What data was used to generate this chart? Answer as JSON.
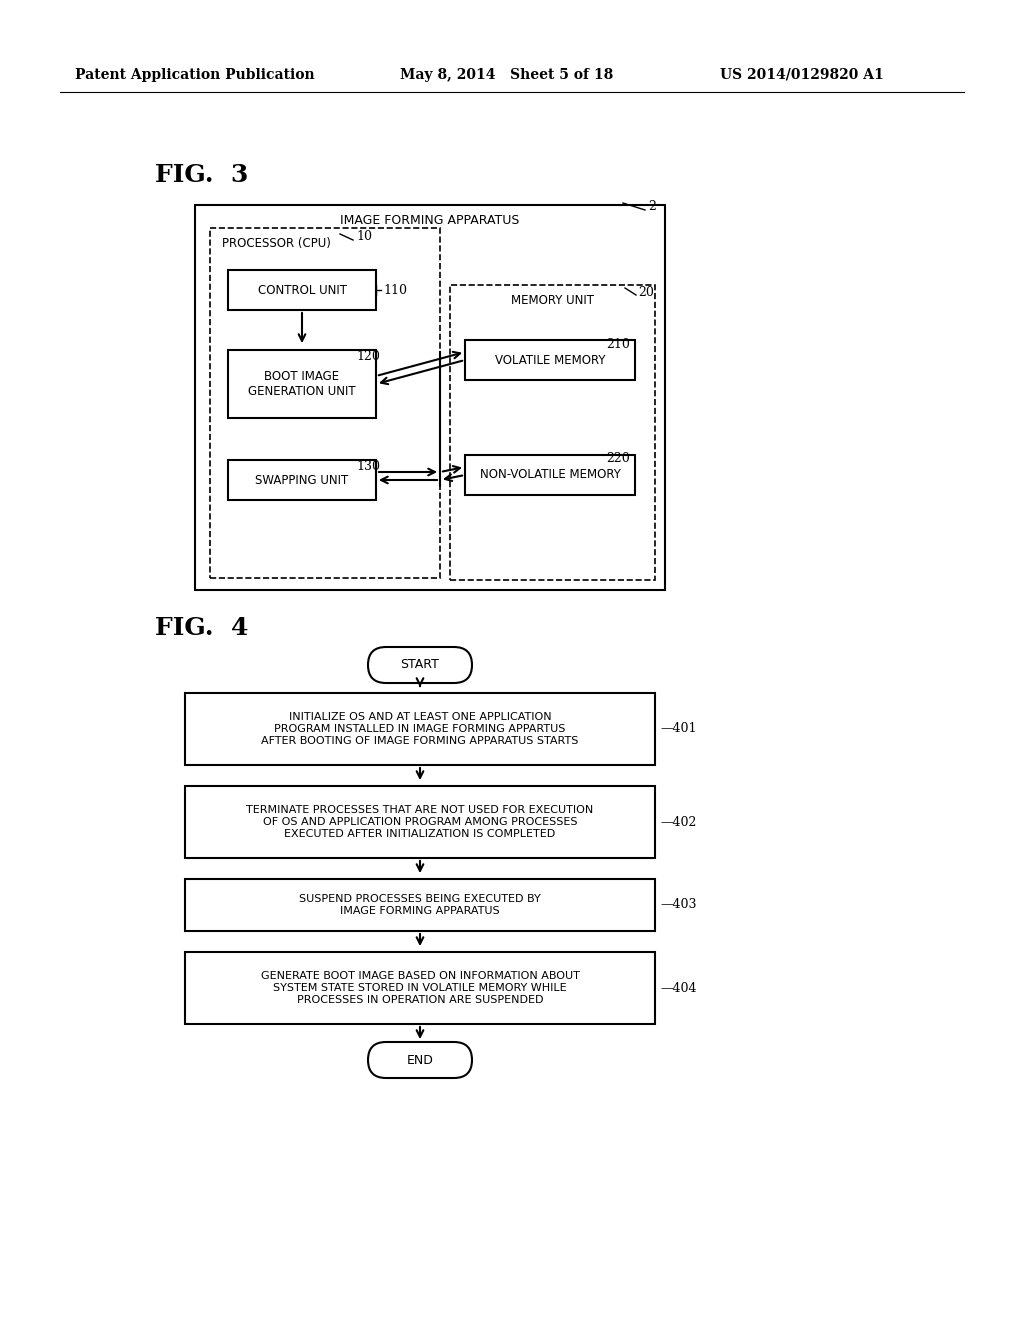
{
  "bg_color": "#ffffff",
  "header_left": "Patent Application Publication",
  "header_mid": "May 8, 2014   Sheet 5 of 18",
  "header_right": "US 2014/0129820 A1",
  "fig3_label": "FIG.  3",
  "fig4_label": "FIG.  4",
  "fig3": {
    "outer_box_label": "IMAGE FORMING APPARATUS",
    "outer_ref": "2",
    "processor_box_label": "PROCESSOR (CPU)",
    "processor_ref": "10",
    "control_unit_label": "CONTROL UNIT",
    "control_ref": "110",
    "boot_image_label": "BOOT IMAGE\nGENERATION UNIT",
    "boot_ref": "120",
    "swapping_label": "SWAPPING UNIT",
    "swapping_ref": "130",
    "memory_box_label": "MEMORY UNIT",
    "memory_ref": "20",
    "volatile_label": "VOLATILE MEMORY",
    "volatile_ref": "210",
    "nonvolatile_label": "NON-VOLATILE MEMORY",
    "nonvolatile_ref": "220"
  },
  "fig4": {
    "start_label": "START",
    "end_label": "END",
    "box1_label": "INITIALIZE OS AND AT LEAST ONE APPLICATION\nPROGRAM INSTALLED IN IMAGE FORMING APPARTUS\nAFTER BOOTING OF IMAGE FORMING APPARATUS STARTS",
    "box1_ref": "401",
    "box2_label": "TERMINATE PROCESSES THAT ARE NOT USED FOR EXECUTION\nOF OS AND APPLICATION PROGRAM AMONG PROCESSES\nEXECUTED AFTER INITIALIZATION IS COMPLETED",
    "box2_ref": "402",
    "box3_label": "SUSPEND PROCESSES BEING EXECUTED BY\nIMAGE FORMING APPARATUS",
    "box3_ref": "403",
    "box4_label": "GENERATE BOOT IMAGE BASED ON INFORMATION ABOUT\nSYSTEM STATE STORED IN VOLATILE MEMORY WHILE\nPROCESSES IN OPERATION ARE SUSPENDED",
    "box4_ref": "404"
  }
}
